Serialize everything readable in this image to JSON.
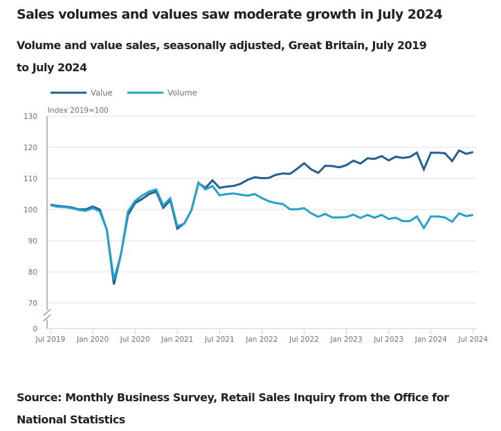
{
  "title": "Sales volumes and values saw moderate growth in July 2024",
  "subtitle": "Volume and value sales, seasonally adjusted, Great Britain, July 2019 to July 2024",
  "source": "Source: Monthly Business Survey, Retail Sales Inquiry from the Office for National Statistics",
  "chart_data": {
    "type": "line",
    "title": "Volume and value sales, seasonally adjusted, Great Britain, July 2019 to July 2024",
    "xlabel": "",
    "ylabel": "Index 2019=100",
    "ylim": [
      70,
      130
    ],
    "y_axis_break": true,
    "y_ticks": [
      "0",
      "70",
      "80",
      "90",
      "100",
      "110",
      "120",
      "130"
    ],
    "x_ticks": [
      "Jul 2019",
      "Jan 2020",
      "Jul 2020",
      "Jan 2021",
      "Jul 2021",
      "Jan 2022",
      "Jul 2022",
      "Jan 2023",
      "Jul 2023",
      "Jan 2024",
      "Jul 2024"
    ],
    "grid": true,
    "legend_position": "top-left",
    "x_start": "Jul 2019",
    "x_end": "Jul 2024",
    "x_frequency": "monthly",
    "series": [
      {
        "name": "Value",
        "color": "#206095",
        "values": [
          101.6,
          101.2,
          101.0,
          100.7,
          100.1,
          100.1,
          101.0,
          100.0,
          93.5,
          76.0,
          85.7,
          98.3,
          102.1,
          103.4,
          105.0,
          105.8,
          100.6,
          103.0,
          93.9,
          95.6,
          99.8,
          108.5,
          107.0,
          109.4,
          107.0,
          107.4,
          107.6,
          108.3,
          109.6,
          110.4,
          110.1,
          110.2,
          111.2,
          111.6,
          111.5,
          113.1,
          114.9,
          112.9,
          111.8,
          114.1,
          114.0,
          113.6,
          114.3,
          115.7,
          114.8,
          116.5,
          116.3,
          117.2,
          115.8,
          117.0,
          116.6,
          116.9,
          118.3,
          112.9,
          118.3,
          118.3,
          118.1,
          115.6,
          119.0,
          117.9,
          118.5
        ]
      },
      {
        "name": "Volume",
        "color": "#27a0cc",
        "values": [
          101.4,
          100.9,
          100.8,
          100.5,
          99.9,
          99.6,
          100.5,
          99.4,
          93.5,
          77.5,
          85.7,
          99.4,
          102.8,
          104.5,
          105.8,
          106.5,
          101.4,
          103.6,
          94.7,
          95.5,
          99.8,
          108.7,
          106.5,
          107.6,
          104.6,
          105.0,
          105.2,
          104.8,
          104.5,
          105.0,
          103.7,
          102.7,
          102.1,
          101.8,
          100.1,
          100.1,
          100.5,
          98.8,
          97.7,
          98.6,
          97.5,
          97.5,
          97.6,
          98.4,
          97.3,
          98.3,
          97.4,
          98.3,
          97.0,
          97.4,
          96.3,
          96.3,
          97.8,
          94.1,
          97.8,
          97.8,
          97.5,
          96.1,
          98.8,
          97.9,
          98.3
        ]
      }
    ]
  }
}
